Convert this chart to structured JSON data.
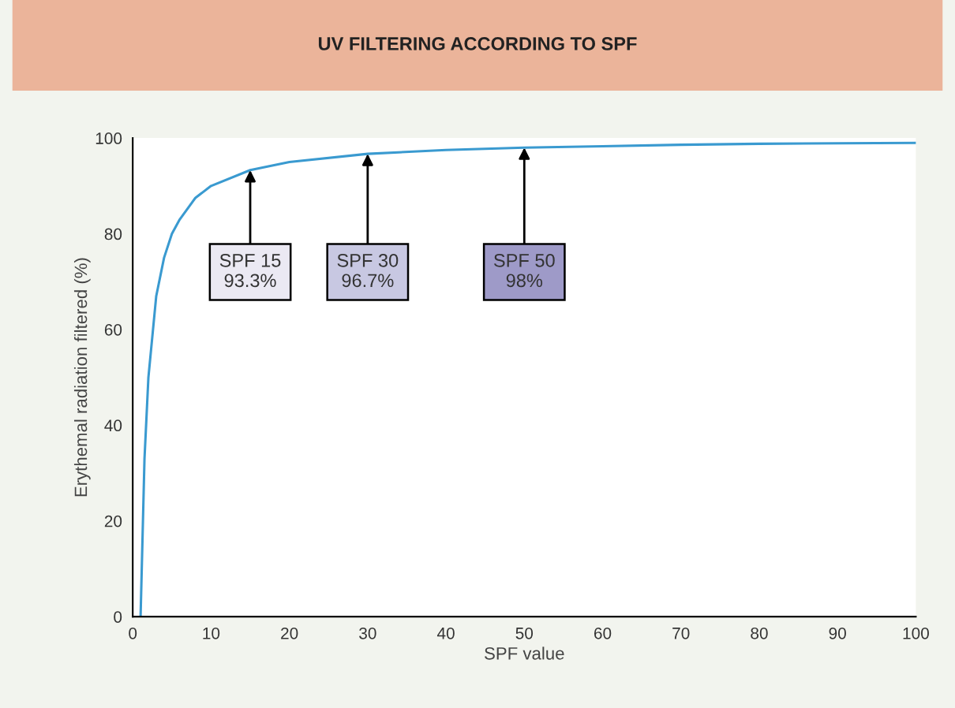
{
  "chart_data": {
    "type": "line",
    "title": "UV FILTERING ACCORDING TO SPF",
    "xlabel": "SPF value",
    "ylabel": "Erythemal radiation filtered (%)",
    "series": [
      {
        "color": "#3a9ad0",
        "x": [
          1,
          1.5,
          2,
          3,
          4,
          5,
          6,
          8,
          10,
          15,
          20,
          30,
          40,
          50,
          60,
          70,
          80,
          90,
          100
        ],
        "values": [
          0,
          33,
          50,
          67,
          75,
          80,
          83,
          87.5,
          90,
          93.3,
          95,
          96.7,
          97.5,
          98,
          98.3,
          98.6,
          98.8,
          98.9,
          99
        ]
      }
    ],
    "xlim": [
      0,
      100
    ],
    "xticks": [
      0,
      10,
      20,
      30,
      40,
      50,
      60,
      70,
      80,
      90,
      100
    ],
    "ylim": [
      0,
      100
    ],
    "yticks": [
      0,
      20,
      40,
      60,
      80,
      100
    ],
    "grid": false,
    "legend": false,
    "marker": "none",
    "line_style": "solid",
    "annotations": [
      {
        "text": "SPF 15\n93.3%",
        "x": 15,
        "y": 93.3
      },
      {
        "text": "SPF 30\n96.7%",
        "x": 30,
        "y": 96.7
      },
      {
        "text": "SPF 50\n98%",
        "x": 50,
        "y": 98
      }
    ]
  }
}
